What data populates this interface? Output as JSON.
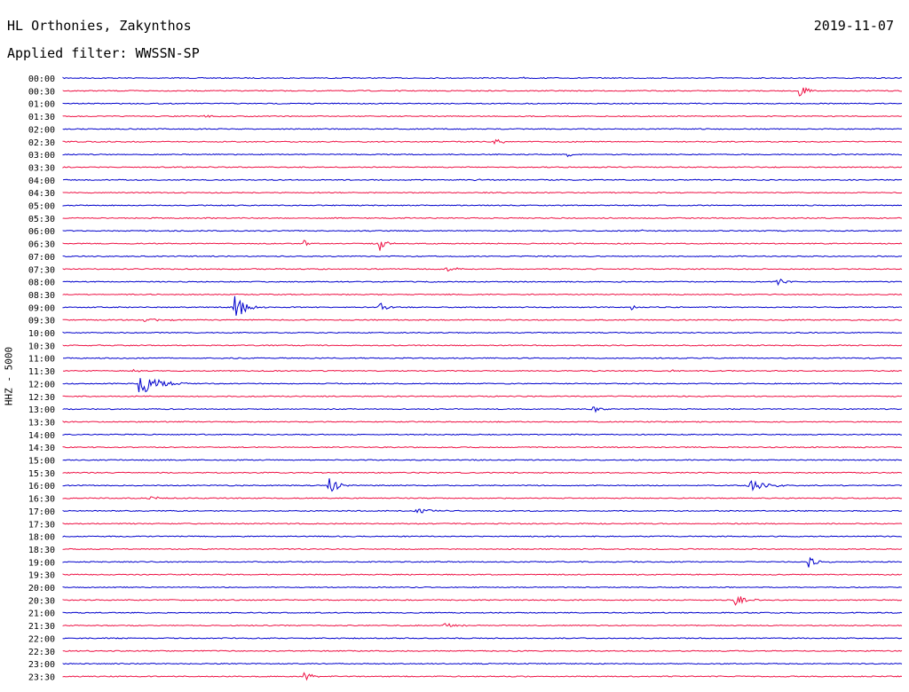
{
  "header": {
    "station": "HL Orthonies, Zakynthos",
    "date": "2019-11-07",
    "filter": "Applied filter: WWSSN-SP"
  },
  "colors": {
    "even": "#0000cc",
    "odd": "#ee1144"
  },
  "chart_data": {
    "type": "line",
    "title": "HL Orthonies, Zakynthos",
    "ylabel": "HHZ - 5000",
    "rows": [
      "00:00",
      "00:30",
      "01:00",
      "01:30",
      "02:00",
      "02:30",
      "03:00",
      "03:30",
      "04:00",
      "04:30",
      "05:00",
      "05:30",
      "06:00",
      "06:30",
      "07:00",
      "07:30",
      "08:00",
      "08:30",
      "09:00",
      "09:30",
      "10:00",
      "10:30",
      "11:00",
      "11:30",
      "12:00",
      "12:30",
      "13:00",
      "13:30",
      "14:00",
      "14:30",
      "15:00",
      "15:30",
      "16:00",
      "16:30",
      "17:00",
      "17:30",
      "18:00",
      "18:30",
      "19:00",
      "19:30",
      "20:00",
      "20:30",
      "21:00",
      "21:30",
      "22:00",
      "22:30",
      "23:00",
      "23:30"
    ],
    "x_span_minutes": 30,
    "events": [
      {
        "row": 0,
        "t": 16.4,
        "amp": 0.2,
        "dur": 0.4
      },
      {
        "row": 1,
        "t": 26.3,
        "amp": 0.8,
        "dur": 0.5
      },
      {
        "row": 3,
        "t": 5.0,
        "amp": 0.3,
        "dur": 0.6
      },
      {
        "row": 5,
        "t": 15.4,
        "amp": 0.4,
        "dur": 0.5
      },
      {
        "row": 6,
        "t": 18.0,
        "amp": 0.5,
        "dur": 0.3
      },
      {
        "row": 8,
        "t": 14.7,
        "amp": 0.2,
        "dur": 0.3
      },
      {
        "row": 12,
        "t": 20.5,
        "amp": 0.2,
        "dur": 0.3
      },
      {
        "row": 13,
        "t": 8.6,
        "amp": 0.6,
        "dur": 0.2
      },
      {
        "row": 13,
        "t": 11.3,
        "amp": 1.2,
        "dur": 0.3
      },
      {
        "row": 15,
        "t": 13.7,
        "amp": 0.4,
        "dur": 0.5
      },
      {
        "row": 16,
        "t": 25.5,
        "amp": 0.6,
        "dur": 0.4
      },
      {
        "row": 18,
        "t": 6.1,
        "amp": 1.8,
        "dur": 0.6
      },
      {
        "row": 18,
        "t": 11.3,
        "amp": 0.7,
        "dur": 0.4
      },
      {
        "row": 18,
        "t": 20.3,
        "amp": 0.4,
        "dur": 0.3
      },
      {
        "row": 19,
        "t": 2.9,
        "amp": 0.3,
        "dur": 0.8
      },
      {
        "row": 23,
        "t": 2.5,
        "amp": 0.3,
        "dur": 0.3
      },
      {
        "row": 23,
        "t": 21.7,
        "amp": 0.3,
        "dur": 0.3
      },
      {
        "row": 24,
        "t": 2.7,
        "amp": 1.9,
        "dur": 0.9
      },
      {
        "row": 26,
        "t": 18.9,
        "amp": 0.5,
        "dur": 0.5
      },
      {
        "row": 32,
        "t": 9.5,
        "amp": 1.4,
        "dur": 0.4
      },
      {
        "row": 32,
        "t": 24.5,
        "amp": 0.7,
        "dur": 1.0
      },
      {
        "row": 33,
        "t": 2.9,
        "amp": 0.4,
        "dur": 0.6
      },
      {
        "row": 34,
        "t": 12.6,
        "amp": 0.4,
        "dur": 0.8
      },
      {
        "row": 38,
        "t": 26.6,
        "amp": 0.8,
        "dur": 0.5
      },
      {
        "row": 41,
        "t": 24.0,
        "amp": 0.9,
        "dur": 0.5
      },
      {
        "row": 43,
        "t": 13.6,
        "amp": 0.3,
        "dur": 0.6
      },
      {
        "row": 47,
        "t": 8.6,
        "amp": 0.7,
        "dur": 0.5
      }
    ]
  }
}
